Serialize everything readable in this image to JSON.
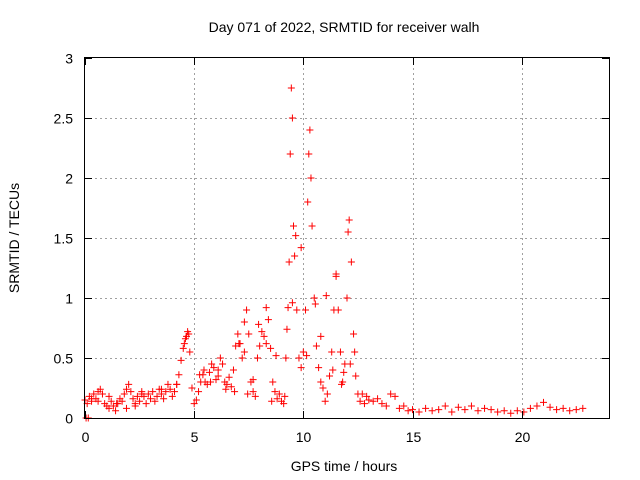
{
  "chart_data": {
    "type": "scatter",
    "title": "Day 071 of 2022, SRMTID for receiver walh",
    "xlabel": "GPS time / hours",
    "ylabel": "SRMTID / TECUs",
    "xlim": [
      0,
      24
    ],
    "ylim": [
      0,
      3
    ],
    "xticks": [
      0,
      5,
      10,
      15,
      20
    ],
    "xtick_labels": [
      "0",
      "5",
      "10",
      "15",
      "20"
    ],
    "yticks": [
      0,
      0.5,
      1,
      1.5,
      2,
      2.5,
      3
    ],
    "ytick_labels": [
      "0",
      "0.5",
      "1",
      "1.5",
      "2",
      "2.5",
      "3"
    ],
    "grid": true,
    "marker": "+",
    "color": "#ff0000",
    "series": [
      {
        "name": "walh",
        "x": [
          0.0,
          0.1,
          0.2,
          0.3,
          0.4,
          0.5,
          0.6,
          0.7,
          0.8,
          0.9,
          1.0,
          1.1,
          1.2,
          1.3,
          1.4,
          1.5,
          1.6,
          1.7,
          1.8,
          1.9,
          2.0,
          2.1,
          2.2,
          2.3,
          2.4,
          2.5,
          2.6,
          2.7,
          2.8,
          2.9,
          3.0,
          3.1,
          3.2,
          3.3,
          3.4,
          3.5,
          3.6,
          3.7,
          3.8,
          3.9,
          4.0,
          4.1,
          4.2,
          4.3,
          4.4,
          4.5,
          4.6,
          4.7,
          4.75,
          4.8,
          4.9,
          5.0,
          5.1,
          5.2,
          5.3,
          5.4,
          5.5,
          5.6,
          5.7,
          5.8,
          5.9,
          6.0,
          6.1,
          6.2,
          6.3,
          6.4,
          6.5,
          6.6,
          6.7,
          6.8,
          6.9,
          7.0,
          7.1,
          7.2,
          7.3,
          7.4,
          7.5,
          7.6,
          7.7,
          7.8,
          7.9,
          8.0,
          8.1,
          8.2,
          8.3,
          8.4,
          8.5,
          8.6,
          8.7,
          8.8,
          8.9,
          9.0,
          9.1,
          9.2,
          9.3,
          9.35,
          9.4,
          9.45,
          9.5,
          9.55,
          9.6,
          9.7,
          9.8,
          9.9,
          10.0,
          10.1,
          10.2,
          10.25,
          10.3,
          10.35,
          10.4,
          10.5,
          10.6,
          10.7,
          10.8,
          10.9,
          11.0,
          11.1,
          11.2,
          11.3,
          11.4,
          11.5,
          11.6,
          11.7,
          11.8,
          11.9,
          12.0,
          12.1,
          12.2,
          12.3,
          12.4,
          12.5,
          12.6,
          12.7,
          12.8,
          12.9,
          13.0,
          13.2,
          13.4,
          13.6,
          13.8,
          14.0,
          14.2,
          14.4,
          14.6,
          14.8,
          15.0,
          15.3,
          15.6,
          15.9,
          16.2,
          16.5,
          16.8,
          17.1,
          17.4,
          17.7,
          18.0,
          18.3,
          18.6,
          18.9,
          19.2,
          19.5,
          19.8,
          20.1,
          20.4,
          20.7,
          21.0,
          21.3,
          21.6,
          21.9,
          22.2,
          22.5,
          22.8,
          0.05,
          0.15,
          0.3,
          0.6,
          1.1,
          1.45,
          1.9,
          2.3,
          2.6,
          3.5,
          4.2,
          4.55,
          4.65,
          5.25,
          5.45,
          5.75,
          6.1,
          6.45,
          6.85,
          7.05,
          7.3,
          7.45,
          7.7,
          7.95,
          8.3,
          8.55,
          8.75,
          9.15,
          9.25,
          9.5,
          9.65,
          9.9,
          10.15,
          10.55,
          10.8,
          11.05,
          11.35,
          11.5,
          11.75,
          11.85,
          12.05,
          12.15,
          12.35
        ],
        "y": [
          0.15,
          0.12,
          0.18,
          0.14,
          0.2,
          0.16,
          0.22,
          0.24,
          0.2,
          0.12,
          0.1,
          0.08,
          0.14,
          0.1,
          0.06,
          0.12,
          0.16,
          0.14,
          0.2,
          0.24,
          0.28,
          0.22,
          0.16,
          0.12,
          0.18,
          0.14,
          0.22,
          0.18,
          0.12,
          0.2,
          0.16,
          0.22,
          0.14,
          0.18,
          0.24,
          0.2,
          0.16,
          0.22,
          0.28,
          0.24,
          0.18,
          0.22,
          0.28,
          0.36,
          0.48,
          0.58,
          0.66,
          0.72,
          0.7,
          0.55,
          0.25,
          0.12,
          0.15,
          0.22,
          0.3,
          0.36,
          0.3,
          0.28,
          0.38,
          0.45,
          0.42,
          0.32,
          0.4,
          0.5,
          0.45,
          0.3,
          0.28,
          0.34,
          0.26,
          0.4,
          0.6,
          0.7,
          0.62,
          0.5,
          0.8,
          0.9,
          0.7,
          0.3,
          0.22,
          0.18,
          0.5,
          0.6,
          0.72,
          0.68,
          0.92,
          0.82,
          0.58,
          0.3,
          0.22,
          0.16,
          0.2,
          0.14,
          0.12,
          0.5,
          0.92,
          1.3,
          2.2,
          2.75,
          2.5,
          1.6,
          1.35,
          0.9,
          0.5,
          0.42,
          0.55,
          0.9,
          1.8,
          2.2,
          2.4,
          2.0,
          1.6,
          1.0,
          0.6,
          0.42,
          0.3,
          0.25,
          0.14,
          0.2,
          0.35,
          0.55,
          0.9,
          1.2,
          0.9,
          0.55,
          0.3,
          0.45,
          1.0,
          1.65,
          1.3,
          0.7,
          0.35,
          0.2,
          0.14,
          0.2,
          0.12,
          0.18,
          0.15,
          0.14,
          0.16,
          0.12,
          0.1,
          0.2,
          0.18,
          0.08,
          0.1,
          0.06,
          0.07,
          0.05,
          0.08,
          0.06,
          0.07,
          0.1,
          0.05,
          0.09,
          0.07,
          0.1,
          0.06,
          0.08,
          0.07,
          0.05,
          0.06,
          0.04,
          0.06,
          0.05,
          0.08,
          0.1,
          0.13,
          0.09,
          0.07,
          0.08,
          0.06,
          0.07,
          0.08,
          0.0,
          0.0,
          0.16,
          0.14,
          0.18,
          0.12,
          0.08,
          0.1,
          0.2,
          0.24,
          0.28,
          0.62,
          0.68,
          0.36,
          0.4,
          0.3,
          0.35,
          0.24,
          0.22,
          0.62,
          0.55,
          0.2,
          0.32,
          0.78,
          0.62,
          0.14,
          0.52,
          0.18,
          0.74,
          0.96,
          1.52,
          1.42,
          0.52,
          0.95,
          0.68,
          1.02,
          0.4,
          1.18,
          0.28,
          0.38,
          1.55,
          0.45,
          0.55
        ]
      }
    ]
  }
}
